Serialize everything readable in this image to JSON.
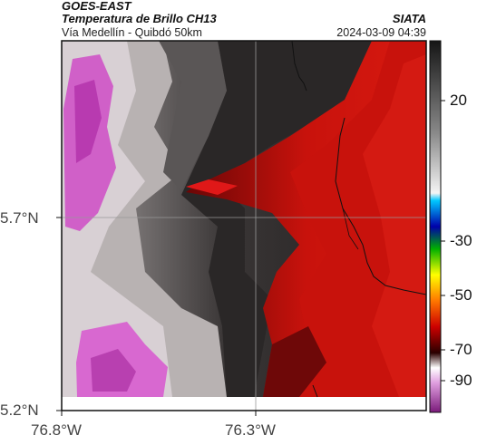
{
  "header": {
    "satellite": "GOES-EAST",
    "product": "Temperatura de Brillo CH13",
    "region": "Vía Medellín - Quibdó 50km",
    "agency": "SIATA",
    "datetime": "2024-03-09 04:39"
  },
  "axes": {
    "lat_ticks": [
      "5.7°N",
      "5.2°N"
    ],
    "lon_ticks": [
      "76.8°W",
      "76.3°W"
    ]
  },
  "colorbar": {
    "ticks": [
      "20",
      "-30",
      "-50",
      "-70",
      "-90"
    ],
    "colors": [
      "#1a1a1a",
      "#ffffff",
      "#00aaff",
      "#0000aa",
      "#00cc00",
      "#ffff00",
      "#ff6600",
      "#cc0000",
      "#330000",
      "#e0c0e0",
      "#d040c0",
      "#8a1a8a"
    ]
  },
  "palette": {
    "cloud_top_dark": "#1c1a1a",
    "cold_red": "#c8100a",
    "very_cold_magenta": "#d85ad0"
  }
}
